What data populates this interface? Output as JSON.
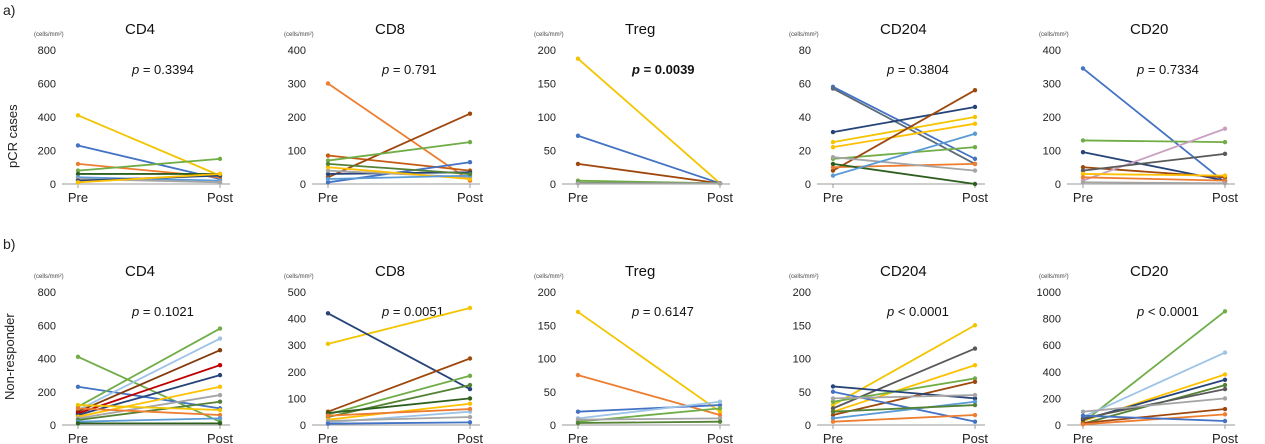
{
  "rows": [
    {
      "letter": "a)",
      "label": "pCR cases"
    },
    {
      "letter": "b)",
      "label": "Non-responder"
    }
  ],
  "chart_data": [
    {
      "type": "line",
      "row": 0,
      "title": "CD4",
      "unit": "(cells/mm²)",
      "p_prefix": "p",
      "p_text": "= 0.3394",
      "p_bold": false,
      "categories": [
        "Pre",
        "Post"
      ],
      "ylim": [
        0,
        800
      ],
      "yticks": [
        0,
        200,
        400,
        600,
        800
      ],
      "series": [
        {
          "color": "#f2c500",
          "values": [
            410,
            50
          ]
        },
        {
          "color": "#4472c4",
          "values": [
            230,
            30
          ]
        },
        {
          "color": "#ed7d31",
          "values": [
            120,
            40
          ]
        },
        {
          "color": "#70ad47",
          "values": [
            80,
            150
          ]
        },
        {
          "color": "#2e5f1f",
          "values": [
            60,
            60
          ]
        },
        {
          "color": "#5b9bd5",
          "values": [
            40,
            20
          ]
        },
        {
          "color": "#a5a5a5",
          "values": [
            30,
            10
          ]
        },
        {
          "color": "#264478",
          "values": [
            20,
            50
          ]
        },
        {
          "color": "#ffc000",
          "values": [
            10,
            60
          ]
        }
      ]
    },
    {
      "type": "line",
      "row": 0,
      "title": "CD8",
      "unit": "(cells/mm²)",
      "p_prefix": "p",
      "p_text": "= 0.791",
      "p_bold": false,
      "categories": [
        "Pre",
        "Post"
      ],
      "ylim": [
        0,
        400
      ],
      "yticks": [
        0,
        100,
        200,
        300,
        400
      ],
      "series": [
        {
          "color": "#ed7d31",
          "values": [
            300,
            10
          ]
        },
        {
          "color": "#c55a11",
          "values": [
            85,
            40
          ]
        },
        {
          "color": "#9e480e",
          "values": [
            20,
            210
          ]
        },
        {
          "color": "#70ad47",
          "values": [
            70,
            125
          ]
        },
        {
          "color": "#4472c4",
          "values": [
            5,
            65
          ]
        },
        {
          "color": "#264478",
          "values": [
            30,
            35
          ]
        },
        {
          "color": "#a5a5a5",
          "values": [
            40,
            20
          ]
        },
        {
          "color": "#ffc000",
          "values": [
            50,
            15
          ]
        },
        {
          "color": "#5b9bd5",
          "values": [
            15,
            25
          ]
        },
        {
          "color": "#548235",
          "values": [
            60,
            30
          ]
        }
      ]
    },
    {
      "type": "line",
      "row": 0,
      "title": "Treg",
      "unit": "(cells/mm²)",
      "p_prefix": "p",
      "p_text": "= 0.0039",
      "p_bold": true,
      "categories": [
        "Pre",
        "Post"
      ],
      "ylim": [
        0,
        200
      ],
      "yticks": [
        0,
        50,
        100,
        150,
        200
      ],
      "series": [
        {
          "color": "#f2c500",
          "values": [
            187,
            1
          ]
        },
        {
          "color": "#4472c4",
          "values": [
            72,
            1
          ]
        },
        {
          "color": "#9e480e",
          "values": [
            30,
            1
          ]
        },
        {
          "color": "#70ad47",
          "values": [
            5,
            1
          ]
        },
        {
          "color": "#548235",
          "values": [
            2,
            1
          ]
        },
        {
          "color": "#a5a5a5",
          "values": [
            1,
            1
          ]
        }
      ]
    },
    {
      "type": "line",
      "row": 0,
      "title": "CD204",
      "unit": "(cells/mm²)",
      "p_prefix": "p",
      "p_text": "= 0.3804",
      "p_bold": false,
      "categories": [
        "Pre",
        "Post"
      ],
      "ylim": [
        0,
        80
      ],
      "yticks": [
        0,
        20,
        40,
        60,
        80
      ],
      "series": [
        {
          "color": "#4472c4",
          "values": [
            58,
            15
          ]
        },
        {
          "color": "#5b6b7a",
          "values": [
            57,
            12
          ]
        },
        {
          "color": "#264478",
          "values": [
            31,
            46
          ]
        },
        {
          "color": "#f2c500",
          "values": [
            25,
            40
          ]
        },
        {
          "color": "#ffc000",
          "values": [
            22,
            36
          ]
        },
        {
          "color": "#70ad47",
          "values": [
            15,
            22
          ]
        },
        {
          "color": "#9e480e",
          "values": [
            8,
            56
          ]
        },
        {
          "color": "#ed7d31",
          "values": [
            10,
            12
          ]
        },
        {
          "color": "#2e5f1f",
          "values": [
            12,
            0
          ]
        },
        {
          "color": "#a5a5a5",
          "values": [
            16,
            8
          ]
        },
        {
          "color": "#5b9bd5",
          "values": [
            5,
            30
          ]
        }
      ]
    },
    {
      "type": "line",
      "row": 0,
      "title": "CD20",
      "unit": "(cells/mm²)",
      "p_prefix": "p",
      "p_text": "= 0.7334",
      "p_bold": false,
      "categories": [
        "Pre",
        "Post"
      ],
      "ylim": [
        0,
        400
      ],
      "yticks": [
        0,
        100,
        200,
        300,
        400
      ],
      "series": [
        {
          "color": "#4472c4",
          "values": [
            345,
            5
          ]
        },
        {
          "color": "#70ad47",
          "values": [
            130,
            125
          ]
        },
        {
          "color": "#264478",
          "values": [
            95,
            10
          ]
        },
        {
          "color": "#9e480e",
          "values": [
            50,
            20
          ]
        },
        {
          "color": "#c9a0c0",
          "values": [
            10,
            165
          ]
        },
        {
          "color": "#595959",
          "values": [
            40,
            90
          ]
        },
        {
          "color": "#ffc000",
          "values": [
            30,
            25
          ]
        },
        {
          "color": "#ed7d31",
          "values": [
            20,
            10
          ]
        },
        {
          "color": "#a5a5a5",
          "values": [
            5,
            2
          ]
        }
      ]
    },
    {
      "type": "line",
      "row": 1,
      "title": "CD4",
      "unit": "(cells/mm²)",
      "p_prefix": "p",
      "p_text": "= 0.1021",
      "p_bold": false,
      "categories": [
        "Pre",
        "Post"
      ],
      "ylim": [
        0,
        800
      ],
      "yticks": [
        0,
        200,
        400,
        600,
        800
      ],
      "series": [
        {
          "color": "#70ad47",
          "values": [
            410,
            20
          ]
        },
        {
          "color": "#4472c4",
          "values": [
            230,
            100
          ]
        },
        {
          "color": "#70ad47",
          "values": [
            110,
            580
          ]
        },
        {
          "color": "#9dc3e6",
          "values": [
            90,
            520
          ]
        },
        {
          "color": "#843c0c",
          "values": [
            80,
            450
          ]
        },
        {
          "color": "#c00000",
          "values": [
            70,
            360
          ]
        },
        {
          "color": "#264478",
          "values": [
            60,
            300
          ]
        },
        {
          "color": "#ffc000",
          "values": [
            50,
            230
          ]
        },
        {
          "color": "#a5a5a5",
          "values": [
            40,
            180
          ]
        },
        {
          "color": "#548235",
          "values": [
            30,
            140
          ]
        },
        {
          "color": "#f2c500",
          "values": [
            120,
            90
          ]
        },
        {
          "color": "#ed7d31",
          "values": [
            100,
            60
          ]
        },
        {
          "color": "#5b9bd5",
          "values": [
            20,
            40
          ]
        },
        {
          "color": "#2e5f1f",
          "values": [
            10,
            10
          ]
        }
      ]
    },
    {
      "type": "line",
      "row": 1,
      "title": "CD8",
      "unit": "(cells/mm²)",
      "p_prefix": "p",
      "p_text": "= 0.0051",
      "p_bold": false,
      "categories": [
        "Pre",
        "Post"
      ],
      "ylim": [
        0,
        500
      ],
      "yticks": [
        0,
        100,
        200,
        300,
        400,
        500
      ],
      "series": [
        {
          "color": "#f2c500",
          "values": [
            305,
            440
          ]
        },
        {
          "color": "#264478",
          "values": [
            420,
            135
          ]
        },
        {
          "color": "#9e480e",
          "values": [
            50,
            250
          ]
        },
        {
          "color": "#70ad47",
          "values": [
            40,
            185
          ]
        },
        {
          "color": "#548235",
          "values": [
            30,
            150
          ]
        },
        {
          "color": "#2e5f1f",
          "values": [
            45,
            100
          ]
        },
        {
          "color": "#ffc000",
          "values": [
            20,
            80
          ]
        },
        {
          "color": "#9dc3e6",
          "values": [
            10,
            50
          ]
        },
        {
          "color": "#a5a5a5",
          "values": [
            15,
            30
          ]
        },
        {
          "color": "#4472c4",
          "values": [
            5,
            10
          ]
        },
        {
          "color": "#ed7d31",
          "values": [
            35,
            60
          ]
        }
      ]
    },
    {
      "type": "line",
      "row": 1,
      "title": "Treg",
      "unit": "(cells/mm²)",
      "p_prefix": "p",
      "p_text": "= 0.6147",
      "p_bold": false,
      "categories": [
        "Pre",
        "Post"
      ],
      "ylim": [
        0,
        200
      ],
      "yticks": [
        0,
        50,
        100,
        150,
        200
      ],
      "series": [
        {
          "color": "#f2c500",
          "values": [
            170,
            20
          ]
        },
        {
          "color": "#ed7d31",
          "values": [
            75,
            15
          ]
        },
        {
          "color": "#4472c4",
          "values": [
            20,
            30
          ]
        },
        {
          "color": "#9dc3e6",
          "values": [
            10,
            35
          ]
        },
        {
          "color": "#70ad47",
          "values": [
            5,
            25
          ]
        },
        {
          "color": "#a5a5a5",
          "values": [
            8,
            10
          ]
        },
        {
          "color": "#548235",
          "values": [
            3,
            5
          ]
        }
      ]
    },
    {
      "type": "line",
      "row": 1,
      "title": "CD204",
      "unit": "(cells/mm²)",
      "p_prefix": "p",
      "p_text": "< 0.0001",
      "p_bold": false,
      "categories": [
        "Pre",
        "Post"
      ],
      "ylim": [
        0,
        200
      ],
      "yticks": [
        0,
        50,
        100,
        150,
        200
      ],
      "series": [
        {
          "color": "#f2c500",
          "values": [
            30,
            150
          ]
        },
        {
          "color": "#595959",
          "values": [
            25,
            115
          ]
        },
        {
          "color": "#ffc000",
          "values": [
            20,
            90
          ]
        },
        {
          "color": "#70ad47",
          "values": [
            35,
            70
          ]
        },
        {
          "color": "#9e480e",
          "values": [
            15,
            65
          ]
        },
        {
          "color": "#264478",
          "values": [
            58,
            40
          ]
        },
        {
          "color": "#4472c4",
          "values": [
            50,
            5
          ]
        },
        {
          "color": "#5b9bd5",
          "values": [
            10,
            35
          ]
        },
        {
          "color": "#a5a5a5",
          "values": [
            40,
            45
          ]
        },
        {
          "color": "#548235",
          "values": [
            20,
            30
          ]
        },
        {
          "color": "#ed7d31",
          "values": [
            5,
            15
          ]
        }
      ]
    },
    {
      "type": "line",
      "row": 1,
      "title": "CD20",
      "unit": "(cells/mm²)",
      "p_prefix": "p",
      "p_text": "< 0.0001",
      "p_bold": false,
      "categories": [
        "Pre",
        "Post"
      ],
      "ylim": [
        0,
        1000
      ],
      "yticks": [
        0,
        200,
        400,
        600,
        800,
        1000
      ],
      "series": [
        {
          "color": "#70ad47",
          "values": [
            20,
            855
          ]
        },
        {
          "color": "#9dc3e6",
          "values": [
            60,
            545
          ]
        },
        {
          "color": "#ffc000",
          "values": [
            30,
            380
          ]
        },
        {
          "color": "#264478",
          "values": [
            40,
            340
          ]
        },
        {
          "color": "#548235",
          "values": [
            10,
            300
          ]
        },
        {
          "color": "#595959",
          "values": [
            50,
            270
          ]
        },
        {
          "color": "#a5a5a5",
          "values": [
            100,
            200
          ]
        },
        {
          "color": "#9e480e",
          "values": [
            15,
            120
          ]
        },
        {
          "color": "#ed7d31",
          "values": [
            5,
            80
          ]
        },
        {
          "color": "#4472c4",
          "values": [
            70,
            30
          ]
        }
      ]
    }
  ]
}
